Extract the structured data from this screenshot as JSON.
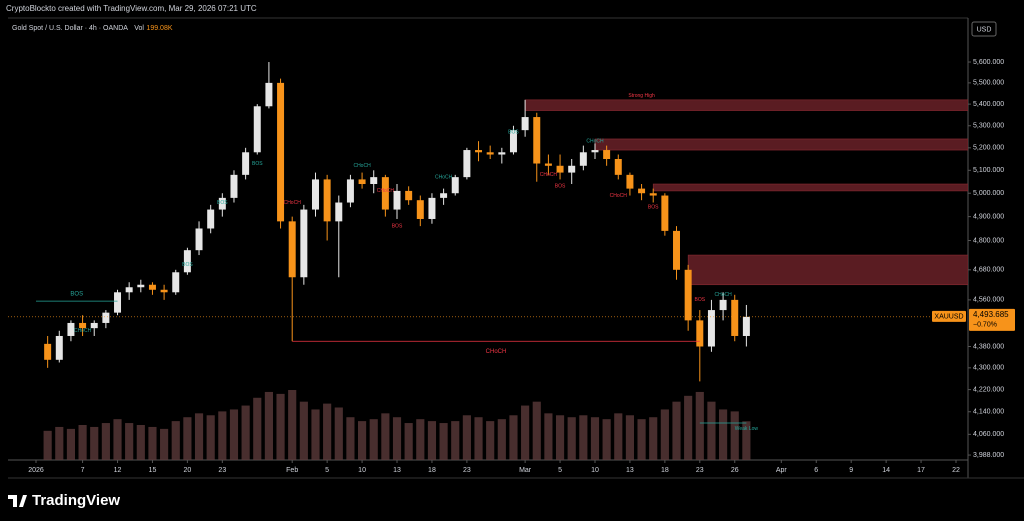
{
  "header": {
    "attribution": "CryptoBlockto created with TradingView.com, Mar 29, 2026 07:21 UTC"
  },
  "chart_data": {
    "type": "candlestick",
    "symbol": "Gold Spot / U.S. Dollar · 4h · OANDA",
    "volume_label": "Vol",
    "volume_value": {
      "value": 199.08,
      "label": "199.08K"
    },
    "currency": "USD",
    "ticker": "XAUUSD",
    "log_scale": true,
    "up_color": "#e6e6e6",
    "down_color": "#f7931a",
    "volume_color": "#5a3a3a",
    "x": [
      "2026-01-02",
      "2026-01-05",
      "2026-01-06",
      "2026-01-07",
      "2026-01-08",
      "2026-01-09",
      "2026-01-12",
      "2026-01-13",
      "2026-01-14",
      "2026-01-15",
      "2026-01-16",
      "2026-01-19",
      "2026-01-20",
      "2026-01-21",
      "2026-01-22",
      "2026-01-23",
      "2026-01-26",
      "2026-01-27",
      "2026-01-28",
      "2026-01-29",
      "2026-01-30",
      "2026-02-02",
      "2026-02-03",
      "2026-02-04",
      "2026-02-05",
      "2026-02-06",
      "2026-02-09",
      "2026-02-10",
      "2026-02-11",
      "2026-02-12",
      "2026-02-13",
      "2026-02-16",
      "2026-02-17",
      "2026-02-18",
      "2026-02-19",
      "2026-02-20",
      "2026-02-23",
      "2026-02-24",
      "2026-02-25",
      "2026-02-26",
      "2026-02-27",
      "2026-03-02",
      "2026-03-03",
      "2026-03-04",
      "2026-03-05",
      "2026-03-06",
      "2026-03-09",
      "2026-03-10",
      "2026-03-11",
      "2026-03-12",
      "2026-03-13",
      "2026-03-16",
      "2026-03-17",
      "2026-03-18",
      "2026-03-19",
      "2026-03-20",
      "2026-03-23",
      "2026-03-24",
      "2026-03-25",
      "2026-03-26",
      "2026-03-27"
    ],
    "open": [
      4390,
      4330,
      4420,
      4470,
      4450,
      4470,
      4510,
      4590,
      4610,
      4620,
      4600,
      4590,
      4670,
      4760,
      4850,
      4930,
      4980,
      5080,
      5180,
      5390,
      5500,
      4880,
      4650,
      4930,
      5060,
      4880,
      4960,
      5060,
      5040,
      5070,
      4930,
      5010,
      4970,
      4890,
      4980,
      5000,
      5070,
      5190,
      5180,
      5170,
      5180,
      5280,
      5340,
      5130,
      5120,
      5090,
      5120,
      5180,
      5190,
      5150,
      5080,
      5020,
      5000,
      4990,
      4840,
      4680,
      4480,
      4380,
      4520,
      4560,
      4420
    ],
    "high": [
      4420,
      4440,
      4480,
      4500,
      4480,
      4520,
      4600,
      4630,
      4640,
      4630,
      4620,
      4680,
      4770,
      4880,
      4950,
      5000,
      5100,
      5200,
      5400,
      5600,
      5520,
      4900,
      4950,
      5090,
      5080,
      4990,
      5080,
      5090,
      5100,
      5080,
      5040,
      5030,
      4990,
      5000,
      5020,
      5080,
      5200,
      5230,
      5210,
      5200,
      5300,
      5420,
      5360,
      5170,
      5170,
      5150,
      5210,
      5220,
      5210,
      5170,
      5090,
      5040,
      5020,
      5000,
      4860,
      4700,
      4520,
      4560,
      4590,
      4580,
      4540
    ],
    "low": [
      4300,
      4320,
      4400,
      4420,
      4420,
      4450,
      4500,
      4560,
      4590,
      4580,
      4560,
      4580,
      4660,
      4740,
      4830,
      4900,
      4960,
      5060,
      5170,
      5380,
      4850,
      4400,
      4620,
      4900,
      4800,
      4650,
      4940,
      5020,
      5000,
      4900,
      4890,
      4950,
      4860,
      4870,
      4950,
      4990,
      5060,
      5140,
      5150,
      5130,
      5170,
      5250,
      5050,
      5080,
      5060,
      5040,
      5100,
      5150,
      5120,
      5060,
      4990,
      4970,
      4960,
      4820,
      4640,
      4440,
      4250,
      4360,
      4480,
      4400,
      4380
    ],
    "close": [
      4330,
      4420,
      4470,
      4450,
      4470,
      4510,
      4590,
      4610,
      4620,
      4600,
      4590,
      4670,
      4760,
      4850,
      4930,
      4980,
      5080,
      5180,
      5390,
      5500,
      4880,
      4650,
      4930,
      5060,
      4880,
      4960,
      5060,
      5040,
      5070,
      4930,
      5010,
      4970,
      4890,
      4980,
      5000,
      5070,
      5190,
      5180,
      5170,
      5180,
      5280,
      5340,
      5130,
      5120,
      5090,
      5120,
      5180,
      5190,
      5150,
      5080,
      5020,
      5000,
      4990,
      4840,
      4680,
      4480,
      4380,
      4520,
      4560,
      4420,
      4493.685
    ],
    "volume": [
      150,
      170,
      160,
      180,
      170,
      190,
      210,
      190,
      180,
      170,
      160,
      200,
      220,
      240,
      230,
      250,
      260,
      280,
      320,
      350,
      340,
      360,
      300,
      260,
      290,
      270,
      220,
      200,
      210,
      240,
      220,
      190,
      210,
      200,
      190,
      200,
      230,
      220,
      200,
      210,
      230,
      280,
      300,
      240,
      230,
      220,
      230,
      220,
      210,
      240,
      230,
      210,
      220,
      260,
      300,
      330,
      350,
      300,
      260,
      250,
      199.08
    ],
    "ylim": [
      3971,
      5807
    ],
    "yticks": [
      {
        "value": 3988,
        "label": "3,988.000"
      },
      {
        "value": 4060,
        "label": "4,060.000"
      },
      {
        "value": 4140,
        "label": "4,140.000"
      },
      {
        "value": 4220,
        "label": "4,220.000"
      },
      {
        "value": 4300,
        "label": "4,300.000"
      },
      {
        "value": 4380,
        "label": "4,380.000"
      },
      {
        "value": 4560,
        "label": "4,560.000"
      },
      {
        "value": 4680,
        "label": "4,680.000"
      },
      {
        "value": 4800,
        "label": "4,800.000"
      },
      {
        "value": 4900,
        "label": "4,900.000"
      },
      {
        "value": 5000,
        "label": "5,000.000"
      },
      {
        "value": 5100,
        "label": "5,100.000"
      },
      {
        "value": 5200,
        "label": "5,200.000"
      },
      {
        "value": 5300,
        "label": "5,300.000"
      },
      {
        "value": 5400,
        "label": "5,400.000"
      },
      {
        "value": 5500,
        "label": "5,500.000"
      },
      {
        "value": 5600,
        "label": "5,600.000"
      }
    ],
    "xlim": [
      "2026-01-01",
      "2026-04-22"
    ],
    "xticks": [
      {
        "value": "2026-01-01",
        "label": "2026"
      },
      {
        "value": "2026-01-07",
        "label": "7"
      },
      {
        "value": "2026-01-12",
        "label": "12"
      },
      {
        "value": "2026-01-15",
        "label": "15"
      },
      {
        "value": "2026-01-20",
        "label": "20"
      },
      {
        "value": "2026-01-23",
        "label": "23"
      },
      {
        "value": "2026-02-02",
        "label": "Feb"
      },
      {
        "value": "2026-02-05",
        "label": "5"
      },
      {
        "value": "2026-02-10",
        "label": "10"
      },
      {
        "value": "2026-02-13",
        "label": "13"
      },
      {
        "value": "2026-02-18",
        "label": "18"
      },
      {
        "value": "2026-02-23",
        "label": "23"
      },
      {
        "value": "2026-03-02",
        "label": "Mar"
      },
      {
        "value": "2026-03-05",
        "label": "5"
      },
      {
        "value": "2026-03-10",
        "label": "10"
      },
      {
        "value": "2026-03-13",
        "label": "13"
      },
      {
        "value": "2026-03-18",
        "label": "18"
      },
      {
        "value": "2026-03-23",
        "label": "23"
      },
      {
        "value": "2026-03-26",
        "label": "26"
      },
      {
        "value": "2026-04-01",
        "label": "Apr"
      },
      {
        "value": "2026-04-06",
        "label": "6"
      },
      {
        "value": "2026-04-09",
        "label": "9"
      },
      {
        "value": "2026-04-14",
        "label": "14"
      },
      {
        "value": "2026-04-17",
        "label": "17"
      },
      {
        "value": "2026-04-22",
        "label": "22"
      }
    ],
    "last_price": {
      "value": 4493.685,
      "label": "4,493.685"
    },
    "change": {
      "value": -0.7,
      "label": "−0.70%"
    },
    "zones": [
      {
        "low": 5370,
        "high": 5420,
        "start": "2026-03-02",
        "color": "#5a1c22"
      },
      {
        "low": 5190,
        "high": 5240,
        "start": "2026-03-10",
        "color": "#5a1c22"
      },
      {
        "low": 5010,
        "high": 5040,
        "start": "2026-03-17",
        "color": "#5a1c22"
      },
      {
        "low": 4620,
        "high": 4740,
        "start": "2026-03-20",
        "color": "#5a1c22"
      }
    ],
    "levels": [
      {
        "label": "BOS",
        "price": 4555,
        "start": "2026-01-01",
        "end": "2026-01-12",
        "color": "#26a69a"
      },
      {
        "label": "CHoCH",
        "price": 4400,
        "start": "2026-02-02",
        "end": "2026-03-23",
        "color": "#f23645"
      },
      {
        "price": 4100,
        "start": "2026-03-23",
        "end": "2026-03-27",
        "color": "#26a69a"
      }
    ],
    "annotations": [
      {
        "text": "CHoCH",
        "x": "2026-01-07",
        "price": 4440,
        "color": "#26a69a"
      },
      {
        "text": "BOS",
        "x": "2026-01-20",
        "price": 4700,
        "color": "#26a69a"
      },
      {
        "text": "BOS",
        "x": "2026-01-23",
        "price": 4960,
        "color": "#26a69a"
      },
      {
        "text": "BOS",
        "x": "2026-01-28",
        "price": 5130,
        "color": "#26a69a"
      },
      {
        "text": "CHoCH",
        "x": "2026-02-02",
        "price": 4960,
        "color": "#f23645"
      },
      {
        "text": "CHoCH",
        "x": "2026-02-10",
        "price": 5120,
        "color": "#26a69a"
      },
      {
        "text": "CHoCH",
        "x": "2026-02-12",
        "price": 5010,
        "color": "#f23645"
      },
      {
        "text": "BOS",
        "x": "2026-02-13",
        "price": 4860,
        "color": "#f23645"
      },
      {
        "text": "CHoCH",
        "x": "2026-02-19",
        "price": 5070,
        "color": "#26a69a"
      },
      {
        "text": "BOS",
        "x": "2026-02-27",
        "price": 5270,
        "color": "#26a69a"
      },
      {
        "text": "CHoCH",
        "x": "2026-03-04",
        "price": 5080,
        "color": "#f23645"
      },
      {
        "text": "BOS",
        "x": "2026-03-05",
        "price": 5030,
        "color": "#f23645"
      },
      {
        "text": "CHoCH",
        "x": "2026-03-10",
        "price": 5230,
        "color": "#26a69a"
      },
      {
        "text": "CHoCH",
        "x": "2026-03-12",
        "price": 4990,
        "color": "#f23645"
      },
      {
        "text": "BOS",
        "x": "2026-03-17",
        "price": 4940,
        "color": "#f23645"
      },
      {
        "text": "BOS",
        "x": "2026-03-23",
        "price": 4560,
        "color": "#f23645"
      },
      {
        "text": "CHoCH",
        "x": "2026-03-25",
        "price": 4580,
        "color": "#26a69a"
      },
      {
        "text": "Strong High",
        "x": "2026-03-16",
        "price": 5440,
        "color": "#f23645"
      },
      {
        "text": "Weak Low",
        "x": "2026-03-27",
        "price": 4080,
        "color": "#26a69a"
      }
    ]
  },
  "footer": {
    "brand": "TradingView"
  }
}
